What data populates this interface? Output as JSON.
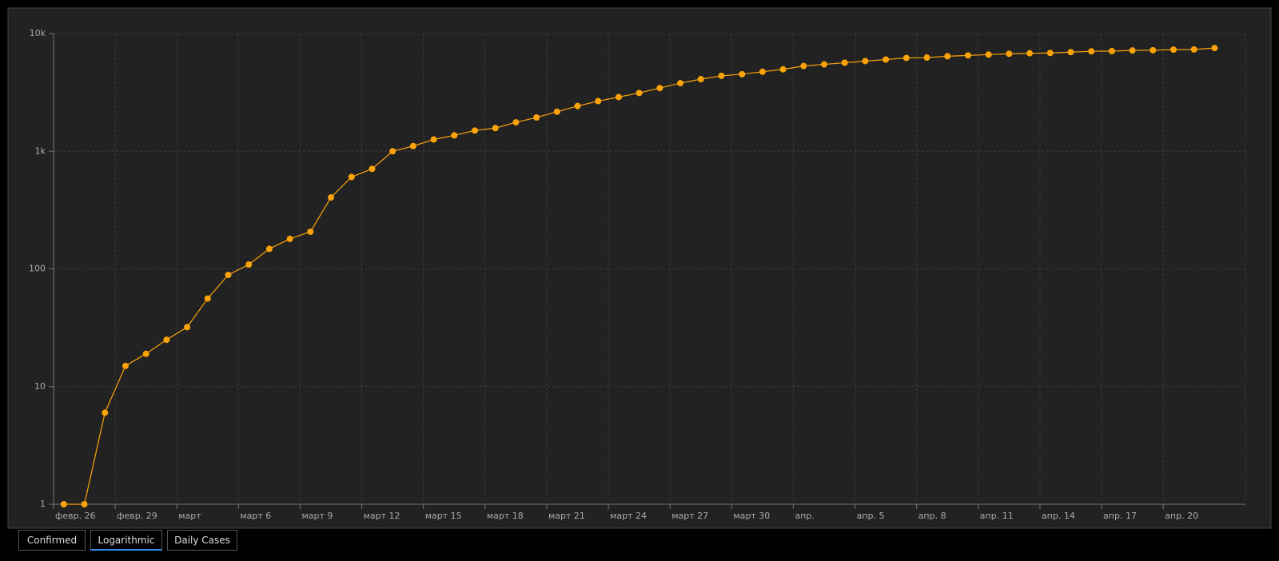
{
  "chart_data": {
    "type": "line",
    "log_scale": true,
    "grid": true,
    "color": "#fca30a",
    "categories": [
      "февр. 26",
      null,
      null,
      "февр. 29",
      null,
      null,
      "март",
      null,
      null,
      "март 6",
      null,
      null,
      "март 9",
      null,
      null,
      "март 12",
      null,
      null,
      "март 15",
      null,
      null,
      "март 18",
      null,
      null,
      "март 21",
      null,
      null,
      "март 24",
      null,
      null,
      "март 27",
      null,
      null,
      "март 30",
      null,
      null,
      "апр.",
      null,
      null,
      "апр. 5",
      null,
      null,
      "апр. 8",
      null,
      null,
      "апр. 11",
      null,
      null,
      "апр. 14",
      null,
      null,
      "апр. 17",
      null,
      null,
      "апр. 20",
      null,
      null
    ],
    "values": [
      1,
      1,
      6,
      15,
      19,
      25,
      32,
      56,
      89,
      109,
      148,
      180,
      207,
      405,
      604,
      708,
      1000,
      1107,
      1259,
      1364,
      1500,
      1574,
      1760,
      1935,
      2167,
      2423,
      2666,
      2886,
      3128,
      3441,
      3788,
      4100,
      4373,
      4517,
      4736,
      4968,
      5300,
      5470,
      5650,
      5832,
      6016,
      6212,
      6250,
      6416,
      6520,
      6627,
      6735,
      6800,
      6843,
      6955,
      7068,
      7100,
      7183,
      7220,
      7300,
      7330,
      7535
    ],
    "ylim": [
      1,
      10000
    ],
    "yticks": [
      {
        "value": 10000,
        "label": "10k"
      },
      {
        "value": 1000,
        "label": "1k"
      },
      100,
      10,
      1
    ]
  },
  "controls": [
    "Confirmed",
    "Logarithmic",
    "Daily Cases"
  ]
}
